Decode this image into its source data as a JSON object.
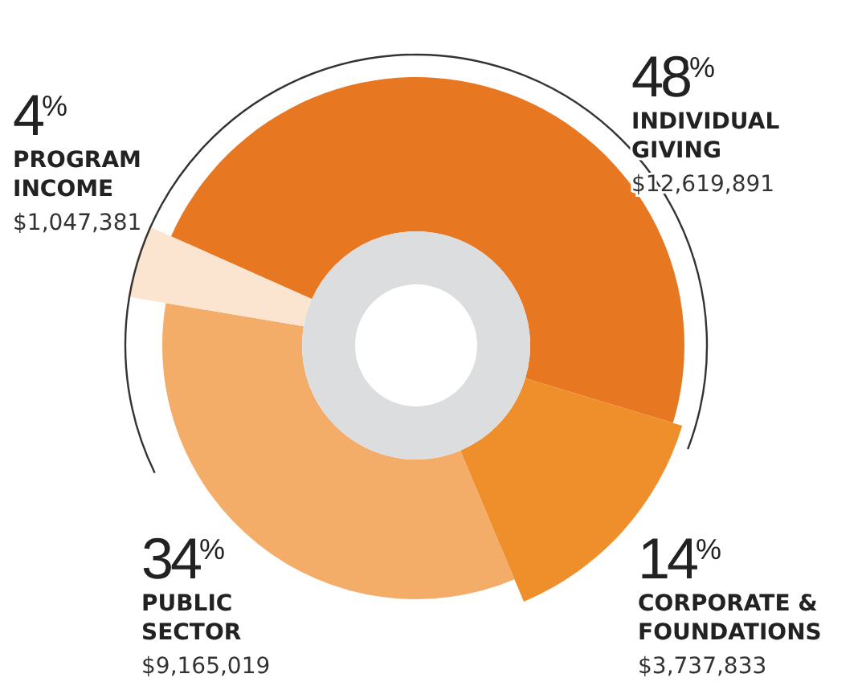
{
  "chart_data": {
    "type": "donut",
    "categories": [
      "INDIVIDUAL GIVING",
      "CORPORATE & FOUNDATIONS",
      "PUBLIC SECTOR",
      "PROGRAM INCOME"
    ],
    "values": [
      48,
      14,
      34,
      4
    ],
    "colors": [
      "#e87722",
      "#ef8f2c",
      "#f4ad69",
      "#fbe4d0"
    ],
    "value_labels": [
      "48$^{%}$",
      "14$^{%}$",
      "34$^{%}$",
      "4$^{%}$"
    ],
    "annotations": [
      "$12,619,891",
      "$3,737,833",
      "$9,165,019",
      "$1,047,381"
    ]
  }
}
